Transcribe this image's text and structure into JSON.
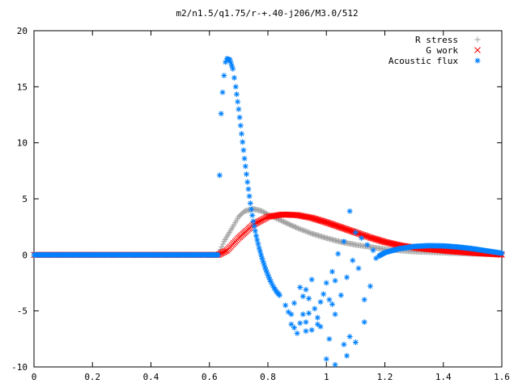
{
  "chart_data": {
    "type": "scatter",
    "title": "m2/n1.5/q1.75/r-+.40-j206/M3.0/512",
    "xlabel": "",
    "ylabel": "",
    "xlim": [
      0,
      1.6
    ],
    "ylim": [
      -10,
      20
    ],
    "grid": false,
    "legend_position": "top-right",
    "x_ticks": [
      "0",
      "0.2",
      "0.4",
      "0.6",
      "0.8",
      "1",
      "1.2",
      "1.4",
      "1.6"
    ],
    "y_ticks": [
      "-10",
      "-5",
      "0",
      "5",
      "10",
      "15",
      "20"
    ],
    "series": [
      {
        "name": "R stress",
        "marker": "plus",
        "color": "#a0a0a0",
        "points": [
          [
            0.0,
            0
          ],
          [
            0.2,
            0
          ],
          [
            0.4,
            0
          ],
          [
            0.6,
            0
          ],
          [
            0.63,
            0
          ],
          [
            0.65,
            1.2
          ],
          [
            0.68,
            2.5
          ],
          [
            0.7,
            3.4
          ],
          [
            0.72,
            3.9
          ],
          [
            0.75,
            4.1
          ],
          [
            0.78,
            3.9
          ],
          [
            0.8,
            3.6
          ],
          [
            0.85,
            3.0
          ],
          [
            0.9,
            2.4
          ],
          [
            0.95,
            1.9
          ],
          [
            1.0,
            1.5
          ],
          [
            1.05,
            1.15
          ],
          [
            1.1,
            0.9
          ],
          [
            1.15,
            0.7
          ],
          [
            1.2,
            0.5
          ],
          [
            1.3,
            0.3
          ],
          [
            1.4,
            0.2
          ],
          [
            1.5,
            0.1
          ],
          [
            1.6,
            0.05
          ]
        ]
      },
      {
        "name": "G work",
        "marker": "cross",
        "color": "#ff0000",
        "points": [
          [
            0.0,
            0
          ],
          [
            0.2,
            0
          ],
          [
            0.4,
            0
          ],
          [
            0.6,
            0
          ],
          [
            0.63,
            0
          ],
          [
            0.66,
            0.4
          ],
          [
            0.7,
            1.5
          ],
          [
            0.75,
            2.7
          ],
          [
            0.8,
            3.4
          ],
          [
            0.85,
            3.6
          ],
          [
            0.9,
            3.55
          ],
          [
            0.95,
            3.3
          ],
          [
            1.0,
            2.9
          ],
          [
            1.05,
            2.45
          ],
          [
            1.1,
            2.0
          ],
          [
            1.15,
            1.55
          ],
          [
            1.2,
            1.15
          ],
          [
            1.25,
            0.85
          ],
          [
            1.3,
            0.65
          ],
          [
            1.35,
            0.5
          ],
          [
            1.4,
            0.38
          ],
          [
            1.45,
            0.28
          ],
          [
            1.5,
            0.18
          ],
          [
            1.55,
            0.1
          ],
          [
            1.6,
            0.02
          ]
        ]
      },
      {
        "name": "Acoustic flux",
        "marker": "star",
        "color": "#0080ff",
        "points": [
          [
            0.0,
            0
          ],
          [
            0.1,
            0
          ],
          [
            0.2,
            0
          ],
          [
            0.3,
            0
          ],
          [
            0.4,
            0
          ],
          [
            0.5,
            0
          ],
          [
            0.6,
            0
          ],
          [
            0.63,
            0
          ],
          [
            0.635,
            7.1
          ],
          [
            0.64,
            12.6
          ],
          [
            0.645,
            14.5
          ],
          [
            0.65,
            16.0
          ],
          [
            0.655,
            17.2
          ],
          [
            0.66,
            17.5
          ],
          [
            0.67,
            17.4
          ],
          [
            0.68,
            16.6
          ],
          [
            0.69,
            15.0
          ],
          [
            0.7,
            13.0
          ],
          [
            0.71,
            10.8
          ],
          [
            0.72,
            8.6
          ],
          [
            0.73,
            6.5
          ],
          [
            0.74,
            4.6
          ],
          [
            0.75,
            3.0
          ],
          [
            0.76,
            1.7
          ],
          [
            0.77,
            0.6
          ],
          [
            0.78,
            -0.3
          ],
          [
            0.79,
            -1.1
          ],
          [
            0.8,
            -1.8
          ],
          [
            0.81,
            -2.4
          ],
          [
            0.82,
            -2.9
          ],
          [
            0.83,
            -3.3
          ],
          [
            0.84,
            -3.6
          ],
          [
            0.86,
            -4.5
          ],
          [
            0.87,
            -5.1
          ],
          [
            0.88,
            -6.2
          ],
          [
            0.89,
            -6.5
          ],
          [
            0.9,
            -7.0
          ],
          [
            0.91,
            -6.1
          ],
          [
            0.92,
            -5.3
          ],
          [
            0.93,
            -6.0
          ],
          [
            0.94,
            -5.2
          ],
          [
            0.95,
            -6.7
          ],
          [
            0.96,
            -4.8
          ],
          [
            0.97,
            -5.6
          ],
          [
            0.98,
            -4.2
          ],
          [
            0.99,
            -3.5
          ],
          [
            1.0,
            -9.3
          ],
          [
            1.0,
            -2.5
          ],
          [
            1.01,
            -4.0
          ],
          [
            1.02,
            -1.5
          ],
          [
            1.03,
            -2.3
          ],
          [
            1.04,
            0.1
          ],
          [
            1.05,
            -3.6
          ],
          [
            1.06,
            1.2
          ],
          [
            1.07,
            -2.0
          ],
          [
            1.08,
            3.9
          ],
          [
            1.09,
            -0.5
          ],
          [
            1.1,
            2.0
          ],
          [
            1.11,
            -1.2
          ],
          [
            1.12,
            1.5
          ],
          [
            1.13,
            -4.0
          ],
          [
            1.14,
            0.9
          ],
          [
            1.15,
            -2.8
          ],
          [
            1.16,
            0.4
          ],
          [
            1.17,
            -0.3
          ],
          [
            1.18,
            -0.1
          ],
          [
            1.19,
            0.05
          ],
          [
            1.2,
            0.2
          ],
          [
            1.22,
            0.35
          ],
          [
            1.25,
            0.55
          ],
          [
            1.3,
            0.75
          ],
          [
            1.35,
            0.82
          ],
          [
            1.4,
            0.8
          ],
          [
            1.45,
            0.7
          ],
          [
            1.5,
            0.55
          ],
          [
            1.55,
            0.35
          ],
          [
            1.6,
            0.15
          ],
          [
            0.88,
            -5.3
          ],
          [
            0.89,
            -4.3
          ],
          [
            0.91,
            -2.9
          ],
          [
            0.92,
            -3.7
          ],
          [
            0.93,
            -3.1
          ],
          [
            0.94,
            -3.9
          ],
          [
            0.95,
            -2.2
          ],
          [
            0.97,
            -6.2
          ],
          [
            1.01,
            -7.5
          ],
          [
            1.02,
            -4.4
          ],
          [
            1.03,
            -5.3
          ],
          [
            1.06,
            -8.0
          ],
          [
            1.08,
            -7.3
          ],
          [
            1.1,
            -7.8
          ],
          [
            1.13,
            -6.0
          ],
          [
            1.07,
            -9.0
          ],
          [
            1.03,
            -9.8
          ],
          [
            0.98,
            -6.4
          ],
          [
            0.93,
            -6.8
          ]
        ]
      }
    ]
  }
}
